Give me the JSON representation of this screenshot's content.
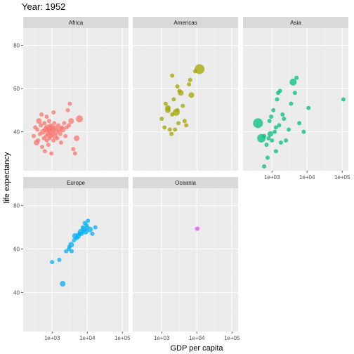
{
  "chart_data": {
    "type": "scatter",
    "title": "Year: 1952",
    "xlabel": "GDP per capita",
    "ylabel": "life expectancy",
    "x_scale": "log10",
    "xlim": [
      150,
      150000
    ],
    "ylim": [
      22,
      88
    ],
    "x_ticks": [
      1000,
      10000,
      100000
    ],
    "x_tick_labels": [
      "1e+03",
      "1e+04",
      "1e+05"
    ],
    "y_ticks": [
      40,
      60,
      80
    ],
    "y_tick_labels": [
      "40",
      "60",
      "80"
    ],
    "grid": true,
    "legend": "none",
    "facets": [
      {
        "name": "Africa",
        "color": "#F8766D",
        "points": [
          [
            300,
            38
          ],
          [
            330,
            42
          ],
          [
            360,
            35
          ],
          [
            380,
            41
          ],
          [
            400,
            36
          ],
          [
            420,
            45
          ],
          [
            450,
            39
          ],
          [
            480,
            43
          ],
          [
            500,
            48
          ],
          [
            520,
            33
          ],
          [
            550,
            40
          ],
          [
            580,
            37
          ],
          [
            600,
            44
          ],
          [
            620,
            31
          ],
          [
            650,
            41
          ],
          [
            680,
            38
          ],
          [
            700,
            36
          ],
          [
            720,
            42
          ],
          [
            750,
            39
          ],
          [
            780,
            34
          ],
          [
            800,
            41
          ],
          [
            820,
            45
          ],
          [
            850,
            37
          ],
          [
            880,
            40
          ],
          [
            900,
            43
          ],
          [
            920,
            38
          ],
          [
            950,
            30
          ],
          [
            980,
            42
          ],
          [
            1000,
            39
          ],
          [
            1050,
            41
          ],
          [
            1100,
            36
          ],
          [
            1150,
            44
          ],
          [
            1200,
            38
          ],
          [
            1250,
            42
          ],
          [
            1300,
            40
          ],
          [
            1400,
            37
          ],
          [
            1500,
            43
          ],
          [
            1600,
            41
          ],
          [
            1700,
            39
          ],
          [
            1800,
            35
          ],
          [
            1900,
            42
          ],
          [
            2000,
            41
          ],
          [
            2200,
            44
          ],
          [
            2400,
            38
          ],
          [
            2600,
            42
          ],
          [
            2800,
            50
          ],
          [
            3000,
            43
          ],
          [
            3200,
            53
          ],
          [
            3500,
            45
          ],
          [
            4000,
            32
          ],
          [
            4500,
            30
          ],
          [
            5000,
            37
          ],
          [
            6000,
            46
          ],
          [
            700,
            47
          ],
          [
            1100,
            49
          ]
        ],
        "sizes": [
          3,
          3,
          4,
          3,
          3,
          4,
          3,
          3,
          3,
          3,
          4,
          3,
          3,
          3,
          4,
          3,
          3,
          4,
          3,
          3,
          4,
          3,
          3,
          4,
          3,
          3,
          3,
          4,
          3,
          4,
          3,
          3,
          4,
          3,
          4,
          3,
          3,
          4,
          3,
          3,
          3,
          4,
          3,
          3,
          3,
          3,
          3,
          3,
          4,
          3,
          3,
          4,
          5,
          3,
          3
        ]
      },
      {
        "name": "Americas",
        "color": "#A3A500",
        "points": [
          [
            1000,
            46
          ],
          [
            1200,
            42
          ],
          [
            1300,
            53
          ],
          [
            1500,
            50
          ],
          [
            1700,
            41
          ],
          [
            1900,
            39
          ],
          [
            2000,
            48
          ],
          [
            2200,
            55
          ],
          [
            2400,
            41
          ],
          [
            2600,
            49
          ],
          [
            2800,
            50
          ],
          [
            3000,
            44
          ],
          [
            3200,
            59
          ],
          [
            3500,
            58
          ],
          [
            4000,
            52
          ],
          [
            4500,
            45
          ],
          [
            5000,
            43
          ],
          [
            6000,
            62
          ],
          [
            6500,
            64
          ],
          [
            7000,
            57
          ],
          [
            9000,
            68
          ],
          [
            12000,
            69
          ],
          [
            2800,
            61
          ],
          [
            2000,
            66
          ],
          [
            1500,
            51
          ]
        ],
        "sizes": [
          3,
          3,
          3,
          4,
          3,
          3,
          3,
          3,
          3,
          5,
          3,
          3,
          3,
          4,
          3,
          3,
          3,
          3,
          3,
          4,
          3,
          7,
          3,
          3,
          4
        ]
      },
      {
        "name": "Asia",
        "color": "#00BF7D",
        "points": [
          [
            400,
            44
          ],
          [
            500,
            37
          ],
          [
            600,
            38
          ],
          [
            700,
            34
          ],
          [
            750,
            28
          ],
          [
            800,
            37
          ],
          [
            850,
            45
          ],
          [
            900,
            39
          ],
          [
            950,
            47
          ],
          [
            1000,
            36
          ],
          [
            1100,
            50
          ],
          [
            1200,
            40
          ],
          [
            1300,
            42
          ],
          [
            1400,
            55
          ],
          [
            1500,
            58
          ],
          [
            1600,
            43
          ],
          [
            1700,
            59
          ],
          [
            1800,
            35
          ],
          [
            2000,
            48
          ],
          [
            2200,
            46
          ],
          [
            2500,
            36
          ],
          [
            3000,
            41
          ],
          [
            3500,
            53
          ],
          [
            4000,
            63
          ],
          [
            4500,
            58
          ],
          [
            5000,
            65
          ],
          [
            6000,
            44
          ],
          [
            8000,
            40
          ],
          [
            11000,
            51
          ],
          [
            108000,
            55
          ],
          [
            1300,
            31
          ],
          [
            600,
            24
          ]
        ],
        "sizes": [
          7,
          6,
          3,
          3,
          3,
          3,
          3,
          4,
          3,
          3,
          3,
          3,
          3,
          3,
          3,
          3,
          3,
          3,
          3,
          3,
          3,
          3,
          3,
          5,
          3,
          3,
          3,
          3,
          3,
          3,
          3,
          3
        ]
      },
      {
        "name": "Europe",
        "color": "#00B0F6",
        "points": [
          [
            1000,
            54
          ],
          [
            1600,
            55
          ],
          [
            2000,
            44
          ],
          [
            2500,
            59
          ],
          [
            3000,
            60
          ],
          [
            3100,
            61
          ],
          [
            3500,
            62
          ],
          [
            3600,
            59
          ],
          [
            4200,
            64
          ],
          [
            4500,
            66
          ],
          [
            5000,
            65
          ],
          [
            5500,
            66
          ],
          [
            6000,
            67
          ],
          [
            6500,
            68
          ],
          [
            7000,
            67
          ],
          [
            7500,
            70
          ],
          [
            8000,
            69
          ],
          [
            8500,
            72
          ],
          [
            9000,
            68
          ],
          [
            9500,
            71
          ],
          [
            10000,
            70
          ],
          [
            10500,
            73
          ],
          [
            12000,
            69
          ],
          [
            14000,
            67
          ],
          [
            17000,
            70
          ]
        ],
        "sizes": [
          3,
          3,
          4,
          3,
          3,
          3,
          4,
          3,
          3,
          4,
          3,
          4,
          3,
          4,
          3,
          3,
          4,
          3,
          4,
          3,
          3,
          3,
          4,
          3,
          3
        ]
      },
      {
        "name": "Oceania",
        "color": "#E76BF3",
        "points": [
          [
            10040,
            69.3
          ],
          [
            10560,
            69.4
          ]
        ],
        "sizes": [
          3,
          3
        ]
      }
    ]
  }
}
